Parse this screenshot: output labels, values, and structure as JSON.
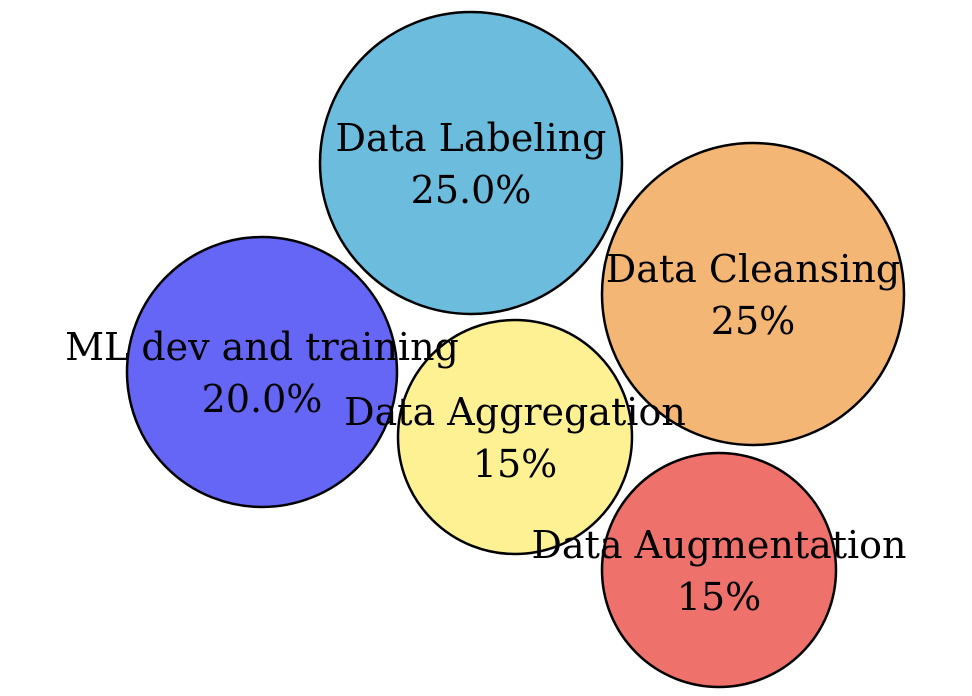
{
  "chart_data": {
    "type": "bubble",
    "title": "",
    "legend": "none",
    "grid": false,
    "series": [
      {
        "name": "Data Labeling",
        "value_label": "25.0%",
        "value": 25.0,
        "color": "#6bbcdd"
      },
      {
        "name": "Data Cleansing",
        "value_label": "25%",
        "value": 25,
        "color": "#f3b674"
      },
      {
        "name": "ML dev and training",
        "value_label": "20.0%",
        "value": 20.0,
        "color": "#6566f5"
      },
      {
        "name": "Data Aggregation",
        "value_label": "15%",
        "value": 15,
        "color": "#fdf193"
      },
      {
        "name": "Data Augmentation",
        "value_label": "15%",
        "value": 15,
        "color": "#ef716b"
      }
    ]
  }
}
